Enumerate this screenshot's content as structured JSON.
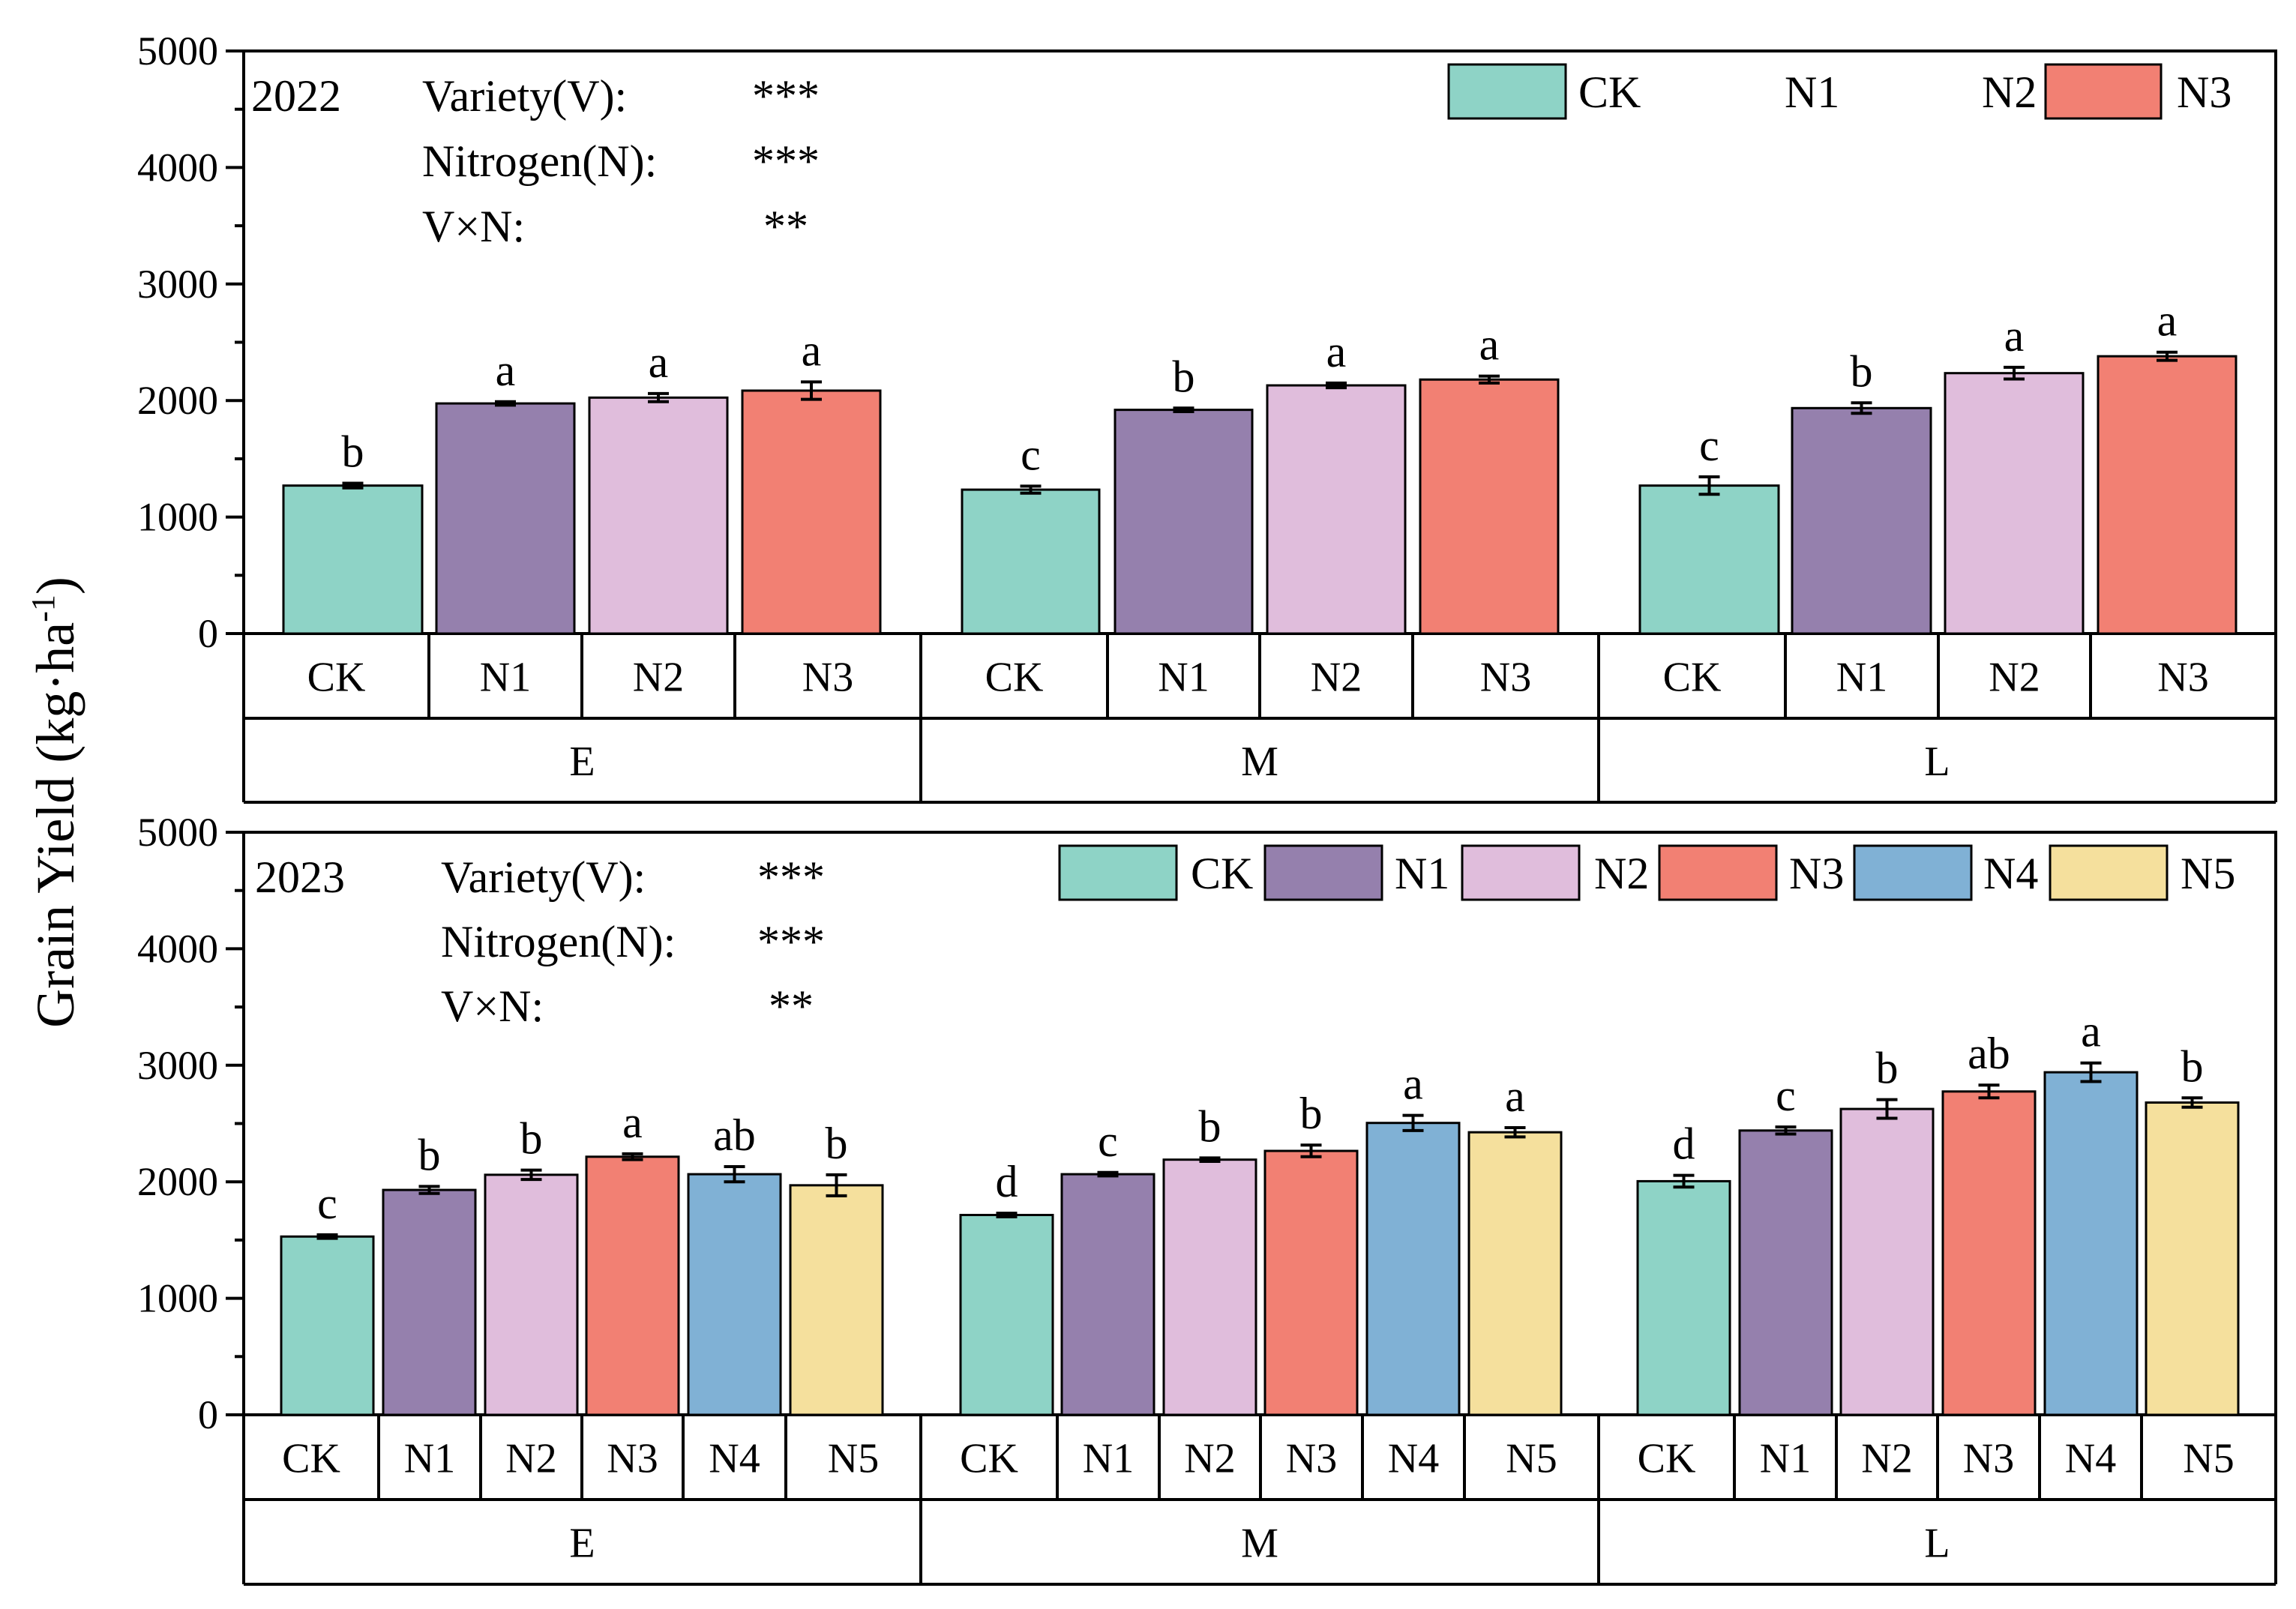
{
  "y_axis_label": "Grain Yield (kg·ha",
  "y_axis_label_sup": "-1",
  "y_axis_label_close": ")",
  "colors": {
    "CK": "#8ed3c6",
    "N1": "#9580ad",
    "N2": "#e0bddc",
    "N3": "#f28073",
    "N4": "#80b1d5",
    "N5": "#f5e09d"
  },
  "chart_data": [
    {
      "type": "bar",
      "year_label": "2022",
      "ylim": [
        0,
        5000
      ],
      "yticks": [
        0,
        1000,
        2000,
        3000,
        4000,
        5000
      ],
      "treatments": [
        "CK",
        "N1",
        "N2",
        "N3"
      ],
      "groups": [
        "E",
        "M",
        "L"
      ],
      "legend": [
        "CK",
        "N1",
        "N2",
        "N3"
      ],
      "anova": [
        {
          "label": "Variety(V):",
          "sig": "***"
        },
        {
          "label": "Nitrogen(N):",
          "sig": "***"
        },
        {
          "label": "V×N:",
          "sig": "**"
        }
      ],
      "series": [
        {
          "group": "E",
          "values": [
            1270,
            1975,
            2025,
            2085
          ],
          "errors": [
            20,
            15,
            35,
            75
          ],
          "letters": [
            "b",
            "a",
            "a",
            "a"
          ]
        },
        {
          "group": "M",
          "values": [
            1235,
            1920,
            2130,
            2180
          ],
          "errors": [
            30,
            15,
            20,
            30
          ],
          "letters": [
            "c",
            "b",
            "a",
            "a"
          ]
        },
        {
          "group": "L",
          "values": [
            1270,
            1935,
            2235,
            2380
          ],
          "errors": [
            75,
            45,
            50,
            35
          ],
          "letters": [
            "c",
            "b",
            "a",
            "a"
          ]
        }
      ]
    },
    {
      "type": "bar",
      "year_label": "2023",
      "ylim": [
        0,
        5000
      ],
      "yticks": [
        0,
        1000,
        2000,
        3000,
        4000,
        5000
      ],
      "treatments": [
        "CK",
        "N1",
        "N2",
        "N3",
        "N4",
        "N5"
      ],
      "groups": [
        "E",
        "M",
        "L"
      ],
      "legend": [
        "CK",
        "N1",
        "N2",
        "N3",
        "N4",
        "N5"
      ],
      "anova": [
        {
          "label": "Variety(V):",
          "sig": "***"
        },
        {
          "label": "Nitrogen(N):",
          "sig": "***"
        },
        {
          "label": "V×N:",
          "sig": "**"
        }
      ],
      "series": [
        {
          "group": "E",
          "values": [
            1530,
            1930,
            2060,
            2215,
            2065,
            1970
          ],
          "errors": [
            15,
            30,
            40,
            25,
            65,
            90
          ],
          "letters": [
            "c",
            "b",
            "b",
            "a",
            "ab",
            "b"
          ]
        },
        {
          "group": "M",
          "values": [
            1715,
            2065,
            2190,
            2265,
            2505,
            2425
          ],
          "errors": [
            15,
            15,
            15,
            50,
            65,
            40
          ],
          "letters": [
            "d",
            "c",
            "b",
            "b",
            "a",
            "a"
          ]
        },
        {
          "group": "L",
          "values": [
            2005,
            2440,
            2625,
            2775,
            2940,
            2680
          ],
          "errors": [
            50,
            30,
            80,
            55,
            80,
            40
          ],
          "letters": [
            "d",
            "c",
            "b",
            "ab",
            "a",
            "b"
          ]
        }
      ]
    }
  ]
}
